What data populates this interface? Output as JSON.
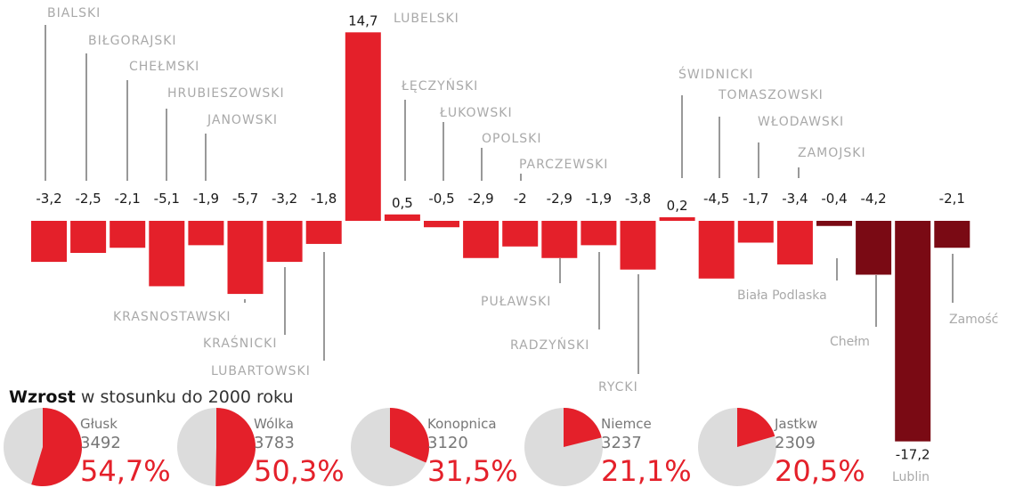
{
  "chart_data": {
    "type": "bar",
    "categories": [
      "BIALSKI",
      "BIŁGORAJSKI",
      "CHEŁMSKI",
      "HRUBIESZOWSKI",
      "JANOWSKI",
      "KRASNOSTAWSKI",
      "KRAŚNICKI",
      "LUBARTOWSKI",
      "LUBELSKI",
      "ŁĘCZYŃSKI",
      "ŁUKOWSKI",
      "OPOLSKI",
      "PARCZEWSKI",
      "PUŁAWSKI",
      "RADZYŃSKI",
      "RYCKI",
      "ŚWIDNICKI",
      "TOMASZOWSKI",
      "WŁODAWSKI",
      "ZAMOJSKI",
      "Biała Podlaska",
      "Chełm",
      "Lublin",
      "Zamość"
    ],
    "values": [
      -3.2,
      -2.5,
      -2.1,
      -5.1,
      -1.9,
      -5.7,
      -3.2,
      -1.8,
      14.7,
      0.5,
      -0.5,
      -2.9,
      -2,
      -2.9,
      -1.9,
      -3.8,
      0.2,
      -4.5,
      -1.7,
      -3.4,
      -0.4,
      -4.2,
      -17.2,
      -2.1
    ],
    "value_labels": [
      "-3,2",
      "-2,5",
      "-2,1",
      "-5,1",
      "-1,9",
      "-5,7",
      "-3,2",
      "-1,8",
      "14,7",
      "0,5",
      "-0,5",
      "-2,9",
      "-2",
      "-2,9",
      "-1,9",
      "-3,8",
      "0,2",
      "-4,5",
      "-1,7",
      "-3,4",
      "-0,4",
      "-4,2",
      "-17,2",
      "-2,1"
    ],
    "colors": {
      "powiat": "#e4202a",
      "city": "#7a0a14"
    },
    "city_categories": [
      "Biała Podlaska",
      "Chełm",
      "Lublin",
      "Zamość"
    ],
    "grid": false,
    "title": ""
  },
  "growth": {
    "title_bold": "Wzrost",
    "title_rest": " w stosunku do 2000 roku",
    "items": [
      {
        "name": "Głusk",
        "population": "3492",
        "percent_label": "54,7%",
        "percent": 54.7
      },
      {
        "name": "Wólka",
        "population": "3783",
        "percent_label": "50,3%",
        "percent": 50.3
      },
      {
        "name": "Konopnica",
        "population": "3120",
        "percent_label": "31,5%",
        "percent": 31.5
      },
      {
        "name": "Niemce",
        "population": "3237",
        "percent_label": "21,1%",
        "percent": 21.1
      },
      {
        "name": "Jastkw",
        "population": "2309",
        "percent_label": "20,5%",
        "percent": 20.5
      }
    ],
    "pie_colors": {
      "fill": "#e4202a",
      "rest": "#dcdcdc"
    }
  }
}
